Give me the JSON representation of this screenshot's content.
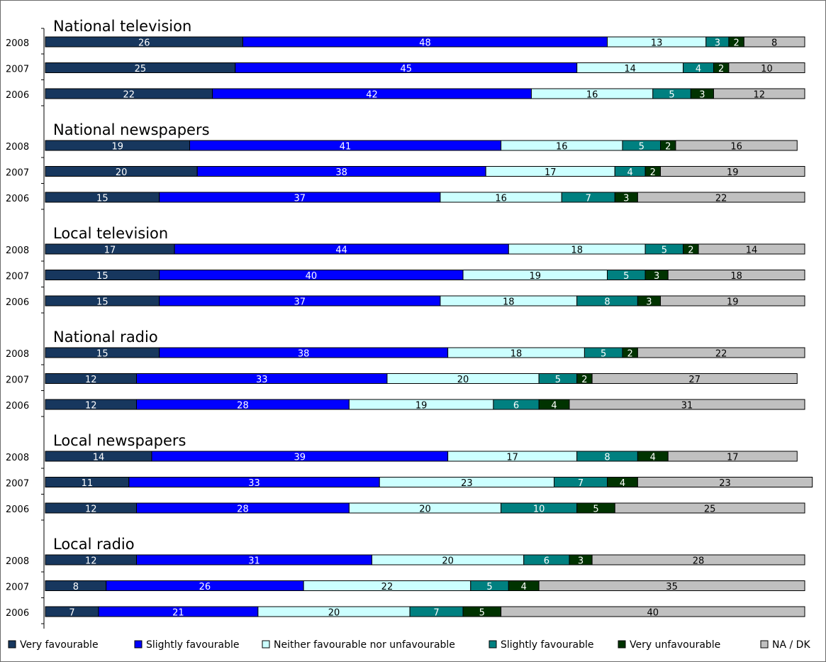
{
  "chart_data": {
    "type": "bar",
    "stacked": true,
    "orientation": "horizontal",
    "xlim": [
      0,
      100
    ],
    "grid": false,
    "legend_position": "bottom",
    "series": [
      {
        "name": "Very favourable",
        "color": "#17375e"
      },
      {
        "name": "Slightly favourable",
        "color": "#0000ff"
      },
      {
        "name": "Neither favourable nor unfavourable",
        "color": "#ccffff"
      },
      {
        "name": "Slightly favourable",
        "color": "#008080"
      },
      {
        "name": "Very unfavourable",
        "color": "#003300"
      },
      {
        "name": "NA / DK",
        "color": "#c0c0c0"
      }
    ],
    "groups": [
      {
        "title": "National television",
        "rows": [
          {
            "year": "2008",
            "values": [
              26,
              48,
              13,
              3,
              2,
              8
            ]
          },
          {
            "year": "2007",
            "values": [
              25,
              45,
              14,
              4,
              2,
              10
            ]
          },
          {
            "year": "2006",
            "values": [
              22,
              42,
              16,
              5,
              3,
              12
            ]
          }
        ]
      },
      {
        "title": "National newspapers",
        "rows": [
          {
            "year": "2008",
            "values": [
              19,
              41,
              16,
              5,
              2,
              16
            ]
          },
          {
            "year": "2007",
            "values": [
              20,
              38,
              17,
              4,
              2,
              19
            ]
          },
          {
            "year": "2006",
            "values": [
              15,
              37,
              16,
              7,
              3,
              22
            ]
          }
        ]
      },
      {
        "title": "Local television",
        "rows": [
          {
            "year": "2008",
            "values": [
              17,
              44,
              18,
              5,
              2,
              14
            ]
          },
          {
            "year": "2007",
            "values": [
              15,
              40,
              19,
              5,
              3,
              18
            ]
          },
          {
            "year": "2006",
            "values": [
              15,
              37,
              18,
              8,
              3,
              19
            ]
          }
        ]
      },
      {
        "title": "National radio",
        "rows": [
          {
            "year": "2008",
            "values": [
              15,
              38,
              18,
              5,
              2,
              22
            ]
          },
          {
            "year": "2007",
            "values": [
              12,
              33,
              20,
              5,
              2,
              27
            ]
          },
          {
            "year": "2006",
            "values": [
              12,
              28,
              19,
              6,
              4,
              31
            ]
          }
        ]
      },
      {
        "title": "Local newspapers",
        "rows": [
          {
            "year": "2008",
            "values": [
              14,
              39,
              17,
              8,
              4,
              17
            ]
          },
          {
            "year": "2007",
            "values": [
              11,
              33,
              23,
              7,
              4,
              23
            ]
          },
          {
            "year": "2006",
            "values": [
              12,
              28,
              20,
              10,
              5,
              25
            ]
          }
        ]
      },
      {
        "title": "Local radio",
        "rows": [
          {
            "year": "2008",
            "values": [
              12,
              31,
              20,
              6,
              3,
              28
            ]
          },
          {
            "year": "2007",
            "values": [
              8,
              26,
              22,
              5,
              4,
              35
            ]
          },
          {
            "year": "2006",
            "values": [
              7,
              21,
              20,
              7,
              5,
              40
            ]
          }
        ]
      }
    ]
  }
}
